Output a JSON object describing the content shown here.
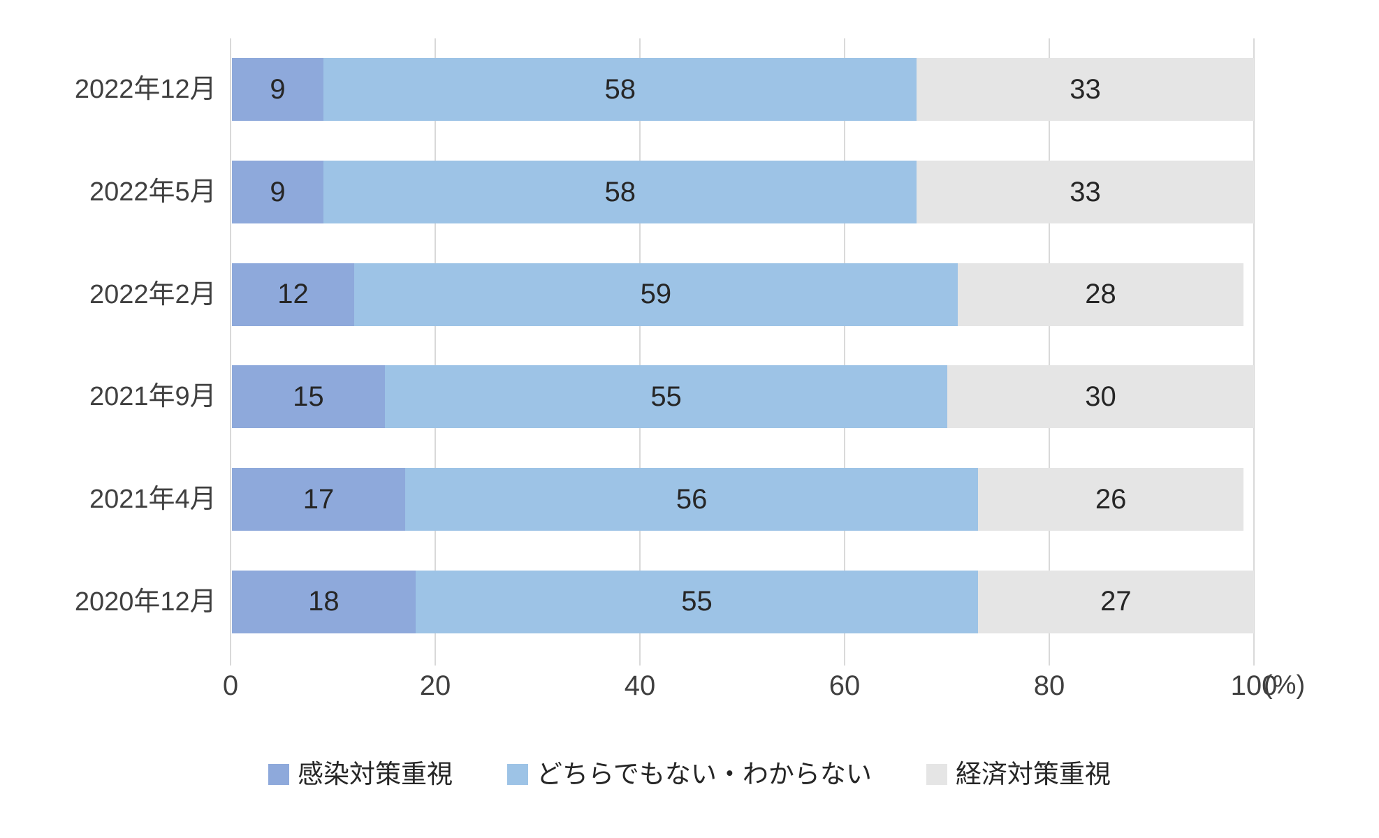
{
  "chart_data": {
    "type": "bar",
    "orientation": "horizontal",
    "stacked": true,
    "title": "",
    "categories": [
      "2022年12月",
      "2022年5月",
      "2022年2月",
      "2021年9月",
      "2021年4月",
      "2020年12月"
    ],
    "series": [
      {
        "name": "感染対策重視",
        "color": "#8EA9DB",
        "values": [
          9,
          9,
          12,
          15,
          17,
          18
        ]
      },
      {
        "name": "どちらでもない・わからない",
        "color": "#9DC3E6",
        "values": [
          58,
          58,
          59,
          55,
          56,
          55
        ]
      },
      {
        "name": "経済対策重視",
        "color": "#E5E5E5",
        "values": [
          33,
          33,
          28,
          30,
          26,
          27
        ]
      }
    ],
    "xlim": [
      0,
      100
    ],
    "xticks": [
      0,
      20,
      40,
      60,
      80,
      100
    ],
    "x_unit_label": "(%)",
    "legend_position": "bottom",
    "grid": true,
    "value_labels": "inside-center"
  },
  "colors": {
    "background": "#FFFFFF",
    "gridline": "#D9D9D9",
    "axis_text": "#404040",
    "bar_value_text": "#262626"
  }
}
